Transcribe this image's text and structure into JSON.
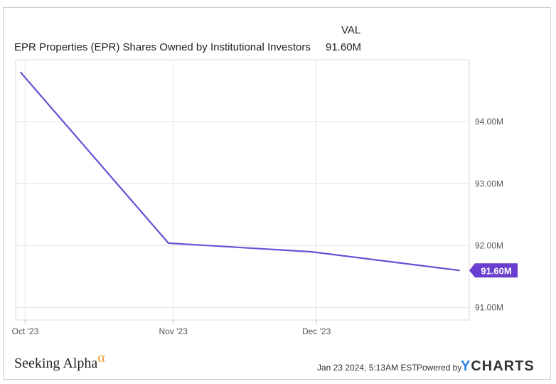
{
  "legend": {
    "header": "VAL",
    "series_name": "EPR Properties (EPR) Shares Owned by Institutional Investors",
    "series_value": "91.60M"
  },
  "colors": {
    "line": "#6a4fd6",
    "badge": "#6a3fcf",
    "grid": "#e4e4e4"
  },
  "chart_data": {
    "type": "line",
    "title": "EPR Properties (EPR) Shares Owned by Institutional Investors",
    "x": [
      "2023-09-30",
      "2023-10-31",
      "2023-11-30",
      "2023-12-31"
    ],
    "series": [
      {
        "name": "EPR Properties (EPR) Shares Owned by Institutional Investors",
        "values": [
          94.8,
          92.04,
          91.9,
          91.6
        ]
      }
    ],
    "x_tick_labels": [
      "Oct '23",
      "Nov '23",
      "Dec '23"
    ],
    "x_tick_dates": [
      "2023-10-01",
      "2023-11-01",
      "2023-12-01"
    ],
    "y_tick_labels": [
      "91.00M",
      "92.00M",
      "93.00M",
      "94.00M"
    ],
    "y_ticks": [
      91,
      92,
      93,
      94
    ],
    "ylim": [
      90.8,
      95.0
    ],
    "y_unit": "M",
    "end_label": "91.60M",
    "grid": true,
    "y_axis_side": "right"
  },
  "footer": {
    "brand": "Seeking Alpha",
    "brand_symbol": "α",
    "timestamp": "Jan 23 2024, 5:13AM EST.",
    "powered_by": "Powered by",
    "ycharts_y": "Y",
    "ycharts_rest": "CHARTS"
  }
}
